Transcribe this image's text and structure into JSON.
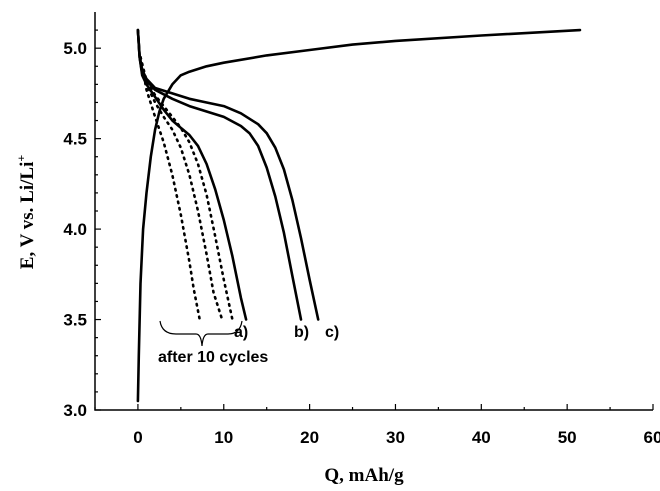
{
  "chart_data": {
    "type": "line",
    "xlabel": "Q, mAh/g",
    "ylabel": "E, V  vs. Li/Li+",
    "xlim": [
      -5,
      60
    ],
    "ylim": [
      3.0,
      5.2
    ],
    "xticks": [
      0,
      10,
      20,
      30,
      40,
      50,
      60
    ],
    "yticks": [
      3.0,
      3.5,
      4.0,
      4.5,
      5.0
    ],
    "xtick_labels": [
      "0",
      "10",
      "20",
      "30",
      "40",
      "50",
      "60"
    ],
    "ytick_labels": [
      "3.0",
      "3.5",
      "4.0",
      "4.5",
      "5.0"
    ],
    "grid": false,
    "series": [
      {
        "style": "solid",
        "x": [
          0.0,
          0.1,
          0.3,
          0.6,
          1.0,
          1.5,
          2.0,
          2.5,
          3.0,
          4.0,
          5.0,
          6.0,
          8.0,
          10.0,
          15.0,
          20.0,
          25.0,
          30.0,
          40.0,
          51.5
        ],
        "y": [
          3.05,
          3.3,
          3.7,
          4.0,
          4.2,
          4.4,
          4.55,
          4.65,
          4.72,
          4.8,
          4.85,
          4.87,
          4.9,
          4.92,
          4.96,
          4.99,
          5.02,
          5.04,
          5.07,
          5.1
        ]
      },
      {
        "style": "solid",
        "name": "a)",
        "x": [
          0.0,
          0.2,
          0.5,
          1.0,
          2.0,
          3.0,
          4.0,
          5.0,
          6.0,
          7.0,
          8.0,
          9.0,
          10.0,
          11.0,
          12.0,
          12.6
        ],
        "y": [
          5.1,
          4.95,
          4.85,
          4.8,
          4.73,
          4.66,
          4.6,
          4.56,
          4.52,
          4.46,
          4.36,
          4.22,
          4.05,
          3.85,
          3.62,
          3.5
        ]
      },
      {
        "style": "solid",
        "name": "b)",
        "x": [
          0.0,
          0.2,
          0.5,
          1.0,
          2.0,
          4.0,
          6.0,
          8.0,
          10.0,
          12.0,
          13.0,
          14.0,
          15.0,
          16.0,
          17.0,
          18.0,
          19.0
        ],
        "y": [
          5.1,
          4.95,
          4.86,
          4.82,
          4.77,
          4.72,
          4.68,
          4.65,
          4.62,
          4.57,
          4.53,
          4.46,
          4.34,
          4.18,
          3.98,
          3.74,
          3.5
        ]
      },
      {
        "style": "solid",
        "name": "c)",
        "x": [
          0.0,
          0.2,
          0.5,
          1.0,
          2.0,
          4.0,
          6.0,
          8.0,
          10.0,
          12.0,
          14.0,
          15.0,
          16.0,
          17.0,
          18.0,
          19.0,
          20.0,
          21.0
        ],
        "y": [
          5.1,
          4.96,
          4.88,
          4.83,
          4.78,
          4.75,
          4.72,
          4.7,
          4.68,
          4.64,
          4.58,
          4.53,
          4.45,
          4.33,
          4.16,
          3.95,
          3.72,
          3.5
        ]
      },
      {
        "style": "dotted",
        "x": [
          0.3,
          1.0,
          2.0,
          3.0,
          4.0,
          5.0,
          6.0,
          6.5,
          7.2
        ],
        "y": [
          4.95,
          4.77,
          4.62,
          4.48,
          4.3,
          4.08,
          3.82,
          3.67,
          3.5
        ]
      },
      {
        "style": "dotted",
        "x": [
          0.3,
          1.0,
          2.0,
          3.0,
          4.0,
          5.0,
          6.0,
          7.0,
          8.0,
          8.8,
          9.8
        ],
        "y": [
          4.95,
          4.8,
          4.7,
          4.62,
          4.55,
          4.45,
          4.3,
          4.1,
          3.86,
          3.65,
          3.5
        ]
      },
      {
        "style": "dotted",
        "x": [
          0.3,
          1.0,
          2.0,
          3.0,
          4.0,
          5.0,
          6.0,
          7.0,
          8.0,
          9.0,
          10.0,
          11.0
        ],
        "y": [
          4.95,
          4.82,
          4.74,
          4.68,
          4.62,
          4.56,
          4.48,
          4.36,
          4.19,
          3.96,
          3.72,
          3.5
        ]
      }
    ],
    "annotations": [
      "a)",
      "b)",
      "c)",
      "after 10 cycles"
    ]
  }
}
